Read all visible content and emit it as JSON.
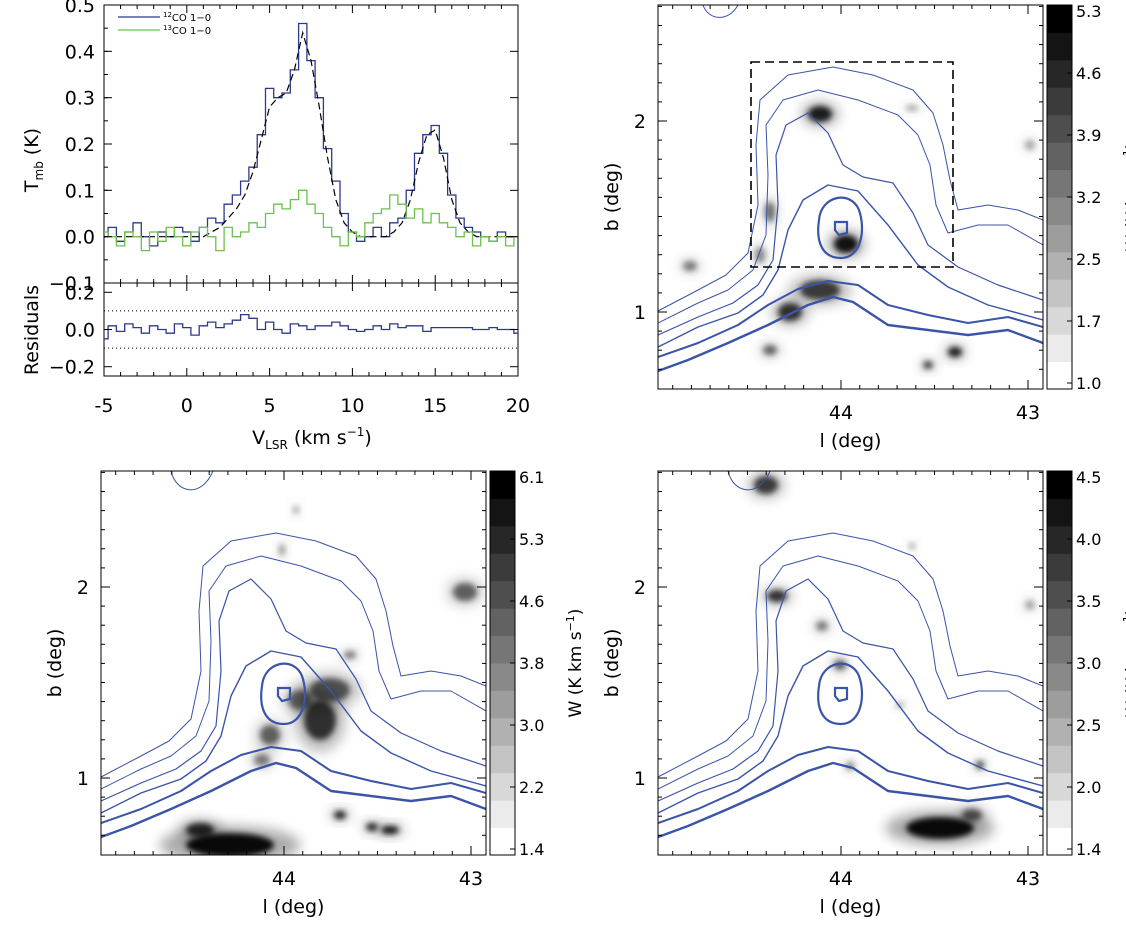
{
  "chart_data": [
    {
      "type": "line",
      "panel": "spectrum",
      "title": "",
      "xlabel_main": "V",
      "xlabel_sub": "LSR",
      "xlabel_unit": "(km s",
      "xlabel_exp": "−1",
      "xlabel_close": ")",
      "ylabel_main": "T",
      "ylabel_sub": "mb",
      "ylabel_unit": "(K)",
      "residual_ylabel": "Residuals",
      "xlim": [
        -5,
        20
      ],
      "ylim": [
        -0.1,
        0.5
      ],
      "residual_ylim": [
        -0.25,
        0.25
      ],
      "residual_guides": [
        0.1,
        -0.1
      ],
      "x_ticks": [
        "-5",
        "0",
        "5",
        "10",
        "15",
        "20"
      ],
      "y_ticks": [
        "0.5",
        "0.4",
        "0.3",
        "0.2",
        "0.1",
        "0.0",
        "−0.1"
      ],
      "residual_ticks": [
        "0.2",
        "0.0",
        "−0.2"
      ],
      "legend": [
        {
          "sup": "12",
          "label": "CO 1−0",
          "color": "#2c3a8c"
        },
        {
          "sup": "13",
          "label": "CO 1−0",
          "color": "#6cc24a"
        }
      ],
      "legend_position": "top-left",
      "series": [
        {
          "name": "12CO 1-0",
          "color": "#2c3a8c",
          "x": [
            -5.0,
            -4.5,
            -4.0,
            -3.5,
            -3.0,
            -2.5,
            -2.0,
            -1.5,
            -1.0,
            -0.5,
            0.0,
            0.5,
            1.0,
            1.5,
            2.0,
            2.5,
            3.0,
            3.5,
            4.0,
            4.5,
            5.0,
            5.5,
            6.0,
            6.5,
            7.0,
            7.5,
            8.0,
            8.5,
            9.0,
            9.5,
            10.0,
            10.5,
            11.0,
            11.5,
            12.0,
            12.5,
            13.0,
            13.5,
            14.0,
            14.5,
            15.0,
            15.5,
            16.0,
            16.5,
            17.0,
            17.5,
            18.0,
            18.5,
            19.0,
            19.5,
            20.0
          ],
          "y": [
            0.0,
            0.02,
            -0.01,
            0.01,
            0.03,
            0.0,
            -0.02,
            0.01,
            0.0,
            0.02,
            0.01,
            -0.01,
            0.02,
            0.04,
            0.03,
            0.07,
            0.09,
            0.12,
            0.15,
            0.22,
            0.32,
            0.3,
            0.31,
            0.36,
            0.46,
            0.38,
            0.3,
            0.19,
            0.12,
            0.05,
            0.01,
            -0.01,
            0.0,
            0.02,
            0.0,
            0.03,
            0.04,
            0.1,
            0.18,
            0.22,
            0.24,
            0.18,
            0.09,
            0.04,
            0.02,
            0.01,
            0.0,
            -0.01,
            0.01,
            0.0,
            0.0
          ]
        },
        {
          "name": "fit",
          "color": "#000000",
          "style": "dashed",
          "x": [
            -5.0,
            -4.5,
            -4.0,
            -3.5,
            -3.0,
            -2.5,
            -2.0,
            -1.5,
            -1.0,
            -0.5,
            0.0,
            0.5,
            1.0,
            1.5,
            2.0,
            2.5,
            3.0,
            3.5,
            4.0,
            4.5,
            5.0,
            5.5,
            6.0,
            6.5,
            7.0,
            7.5,
            8.0,
            8.5,
            9.0,
            9.5,
            10.0,
            10.5,
            11.0,
            11.5,
            12.0,
            12.5,
            13.0,
            13.5,
            14.0,
            14.5,
            15.0,
            15.5,
            16.0,
            16.5,
            17.0,
            17.5,
            18.0,
            18.5,
            19.0,
            19.5,
            20.0
          ],
          "y": [
            0,
            0,
            0,
            0,
            0,
            0,
            0,
            0,
            0,
            0,
            0,
            0,
            0,
            0.01,
            0.02,
            0.04,
            0.06,
            0.09,
            0.14,
            0.21,
            0.28,
            0.3,
            0.31,
            0.36,
            0.44,
            0.38,
            0.28,
            0.17,
            0.08,
            0.03,
            0.01,
            0,
            0,
            0,
            0,
            0.01,
            0.03,
            0.08,
            0.16,
            0.22,
            0.23,
            0.17,
            0.08,
            0.03,
            0.01,
            0,
            0,
            0,
            0,
            0,
            0
          ]
        },
        {
          "name": "13CO 1-0",
          "color": "#6cc24a",
          "x": [
            -5.0,
            -4.5,
            -4.0,
            -3.5,
            -3.0,
            -2.5,
            -2.0,
            -1.5,
            -1.0,
            -0.5,
            0.0,
            0.5,
            1.0,
            1.5,
            2.0,
            2.5,
            3.0,
            3.5,
            4.0,
            4.5,
            5.0,
            5.5,
            6.0,
            6.5,
            7.0,
            7.5,
            8.0,
            8.5,
            9.0,
            9.5,
            10.0,
            10.5,
            11.0,
            11.5,
            12.0,
            12.5,
            13.0,
            13.5,
            14.0,
            14.5,
            15.0,
            15.5,
            16.0,
            16.5,
            17.0,
            17.5,
            18.0,
            18.5,
            19.0,
            19.5,
            20.0
          ],
          "y": [
            0.01,
            0.0,
            -0.02,
            0.01,
            0.0,
            -0.03,
            0.01,
            -0.01,
            0.02,
            0.0,
            -0.02,
            0.01,
            0.02,
            0.0,
            -0.03,
            0.02,
            0.0,
            0.01,
            0.03,
            0.02,
            0.05,
            0.07,
            0.06,
            0.08,
            0.1,
            0.07,
            0.05,
            0.02,
            0.0,
            -0.02,
            0.01,
            0.0,
            0.03,
            0.05,
            0.06,
            0.09,
            0.07,
            0.04,
            0.06,
            0.03,
            0.05,
            0.03,
            0.02,
            0.0,
            0.01,
            -0.02,
            0.0,
            -0.01,
            0.0,
            -0.02,
            0.0
          ]
        },
        {
          "name": "residuals",
          "color": "#2c3a8c",
          "x": [
            -5.0,
            -4.5,
            -4.0,
            -3.5,
            -3.0,
            -2.5,
            -2.0,
            -1.5,
            -1.0,
            -0.5,
            0.0,
            0.5,
            1.0,
            1.5,
            2.0,
            2.5,
            3.0,
            3.5,
            4.0,
            4.5,
            5.0,
            5.5,
            6.0,
            6.5,
            7.0,
            7.5,
            8.0,
            8.5,
            9.0,
            9.5,
            10.0,
            10.5,
            11.0,
            11.5,
            12.0,
            12.5,
            13.0,
            13.5,
            14.0,
            14.5,
            15.0,
            15.5,
            16.0,
            16.5,
            17.0,
            17.5,
            18.0,
            18.5,
            19.0,
            19.5,
            20.0
          ],
          "y": [
            -0.05,
            0.02,
            -0.01,
            0.03,
            0.01,
            -0.02,
            0.02,
            0.0,
            -0.02,
            0.03,
            0.01,
            -0.03,
            0.02,
            0.04,
            0.01,
            0.03,
            0.05,
            0.08,
            0.06,
            0.0,
            0.04,
            0.0,
            -0.02,
            0.03,
            0.02,
            0.0,
            0.02,
            0.02,
            0.04,
            0.02,
            0.0,
            -0.01,
            0.0,
            0.02,
            0.0,
            0.03,
            0.01,
            0.02,
            0.02,
            -0.01,
            0.01,
            0.01,
            0.01,
            0.01,
            0.01,
            0.0,
            0.0,
            0.01,
            0.0,
            0.0,
            -0.02
          ]
        }
      ]
    },
    {
      "type": "heatmap",
      "panel": "map-top-right",
      "xlabel": "l (deg)",
      "ylabel": "b (deg)",
      "x_ticks": [
        "44",
        "43"
      ],
      "y_ticks": [
        "2",
        "1"
      ],
      "colorbar_label": "W (K km s",
      "colorbar_exp": "−1",
      "colorbar_close": ")",
      "colorbar_ticks": [
        "5.3",
        "4.6",
        "3.9",
        "3.2",
        "2.5",
        "1.7",
        "1.0"
      ],
      "box": true
    },
    {
      "type": "heatmap",
      "panel": "map-bottom-left",
      "xlabel": "l (deg)",
      "ylabel": "b (deg)",
      "x_ticks": [
        "44",
        "43"
      ],
      "y_ticks": [
        "2",
        "1"
      ],
      "colorbar_label": "W (K km s",
      "colorbar_exp": "−1",
      "colorbar_close": ")",
      "colorbar_ticks": [
        "6.1",
        "5.3",
        "4.6",
        "3.8",
        "3.0",
        "2.2",
        "1.4"
      ]
    },
    {
      "type": "heatmap",
      "panel": "map-bottom-right",
      "xlabel": "l (deg)",
      "ylabel": "b (deg)",
      "x_ticks": [
        "44",
        "43"
      ],
      "y_ticks": [
        "2",
        "1"
      ],
      "colorbar_label": "W (K km s",
      "colorbar_exp": "−1",
      "colorbar_close": ")",
      "colorbar_ticks": [
        "4.5",
        "4.0",
        "3.5",
        "3.0",
        "2.5",
        "2.0",
        "1.4"
      ]
    }
  ]
}
